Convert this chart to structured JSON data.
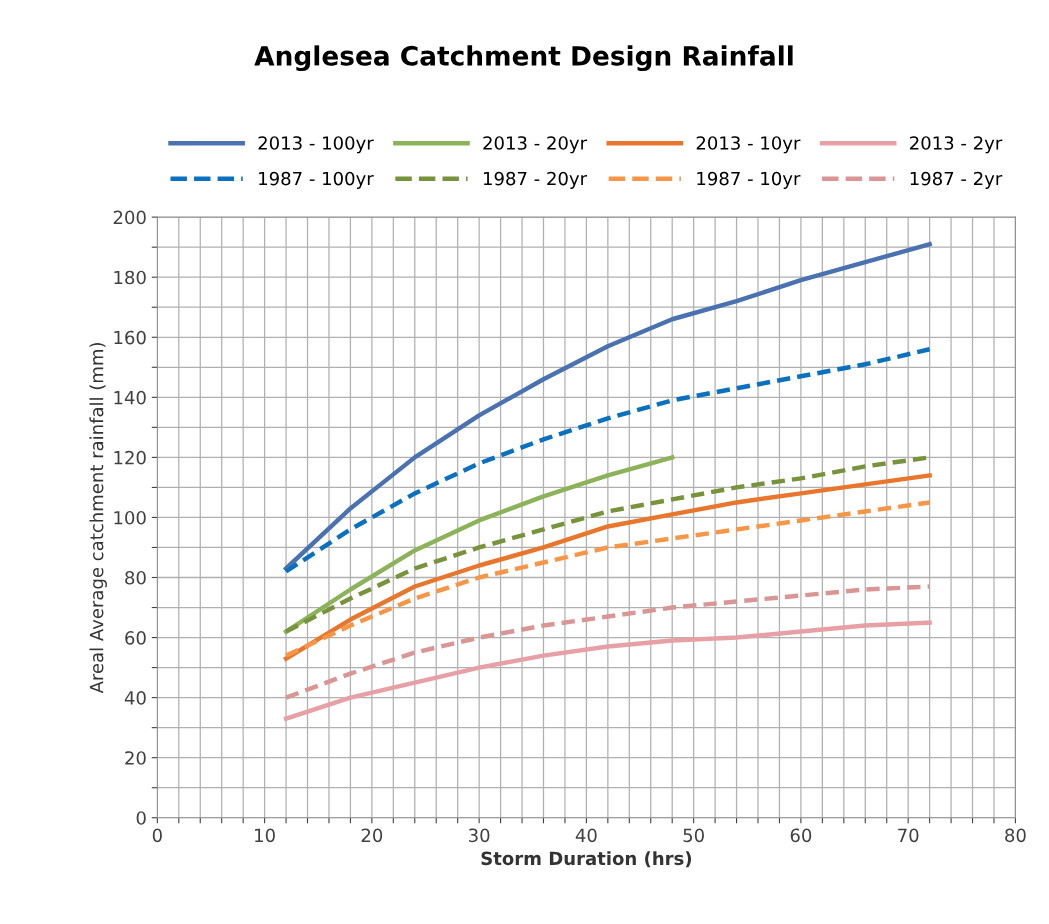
{
  "chart_data": {
    "type": "line",
    "title": "Anglesea Catchment Design Rainfall",
    "xlabel": "Storm Duration (hrs)",
    "ylabel": "Areal Average catchment rainfall (mm)",
    "x": [
      12,
      18,
      24,
      30,
      36,
      42,
      48,
      54,
      60,
      66,
      72
    ],
    "series": [
      {
        "name": "2013 - 100yr",
        "color": "#4a72b0",
        "line_style": "solid",
        "values": [
          83,
          103,
          120,
          134,
          146,
          157,
          166,
          172,
          179,
          185,
          191
        ]
      },
      {
        "name": "2013 - 20yr",
        "color": "#8cb35a",
        "line_style": "solid",
        "values": [
          62,
          76,
          89,
          99,
          107,
          114,
          120,
          null,
          null,
          null,
          null
        ]
      },
      {
        "name": "2013 - 10yr",
        "color": "#e8762d",
        "line_style": "solid",
        "values": [
          53,
          66,
          77,
          84,
          90,
          97,
          101,
          105,
          108,
          111,
          114
        ]
      },
      {
        "name": "2013 - 2yr",
        "color": "#e6a0a6",
        "line_style": "solid",
        "values": [
          33,
          40,
          45,
          50,
          54,
          57,
          59,
          60,
          62,
          64,
          65
        ]
      },
      {
        "name": "1987 - 100yr",
        "color": "#0a70c0",
        "line_style": "dashed",
        "values": [
          82,
          96,
          108,
          118,
          126,
          133,
          139,
          143,
          147,
          151,
          156
        ]
      },
      {
        "name": "1987 - 20yr",
        "color": "#77933c",
        "line_style": "dashed",
        "values": [
          62,
          73,
          83,
          90,
          96,
          102,
          106,
          110,
          113,
          117,
          120
        ]
      },
      {
        "name": "1987 - 10yr",
        "color": "#f79646",
        "line_style": "dashed",
        "values": [
          54,
          64,
          73,
          80,
          85,
          90,
          93,
          96,
          99,
          102,
          105
        ]
      },
      {
        "name": "1987 - 2yr",
        "color": "#d99694",
        "line_style": "dashed",
        "values": [
          40,
          48,
          55,
          60,
          64,
          67,
          70,
          72,
          74,
          76,
          77
        ]
      }
    ],
    "xlim": [
      0,
      80
    ],
    "ylim": [
      0,
      200
    ],
    "xticks": [
      0,
      {
        "value": 2,
        "label": null
      },
      {
        "value": 4,
        "label": null
      },
      {
        "value": 6,
        "label": null
      },
      {
        "value": 8,
        "label": null
      },
      10,
      {
        "value": 12,
        "label": null
      },
      {
        "value": 14,
        "label": null
      },
      {
        "value": 16,
        "label": null
      },
      {
        "value": 18,
        "label": null
      },
      20,
      {
        "value": 22,
        "label": null
      },
      {
        "value": 24,
        "label": null
      },
      {
        "value": 26,
        "label": null
      },
      {
        "value": 28,
        "label": null
      },
      30,
      {
        "value": 32,
        "label": null
      },
      {
        "value": 34,
        "label": null
      },
      {
        "value": 36,
        "label": null
      },
      {
        "value": 38,
        "label": null
      },
      40,
      {
        "value": 42,
        "label": null
      },
      {
        "value": 44,
        "label": null
      },
      {
        "value": 46,
        "label": null
      },
      {
        "value": 48,
        "label": null
      },
      50,
      {
        "value": 52,
        "label": null
      },
      {
        "value": 54,
        "label": null
      },
      {
        "value": 56,
        "label": null
      },
      {
        "value": 58,
        "label": null
      },
      60,
      {
        "value": 62,
        "label": null
      },
      {
        "value": 64,
        "label": null
      },
      {
        "value": 66,
        "label": null
      },
      {
        "value": 68,
        "label": null
      },
      70,
      {
        "value": 72,
        "label": null
      },
      {
        "value": 74,
        "label": null
      },
      {
        "value": 76,
        "label": null
      },
      {
        "value": 78,
        "label": null
      },
      80
    ],
    "yticks": [
      0,
      {
        "value": 10,
        "label": null
      },
      20,
      {
        "value": 30,
        "label": null
      },
      40,
      {
        "value": 50,
        "label": null
      },
      60,
      {
        "value": 70,
        "label": null
      },
      80,
      {
        "value": 90,
        "label": null
      },
      100,
      {
        "value": 110,
        "label": null
      },
      120,
      {
        "value": 130,
        "label": null
      },
      140,
      {
        "value": 150,
        "label": null
      },
      160,
      {
        "value": 170,
        "label": null
      },
      180,
      {
        "value": 190,
        "label": null
      },
      200
    ],
    "grid": true,
    "legend": "top",
    "marker": "none"
  }
}
